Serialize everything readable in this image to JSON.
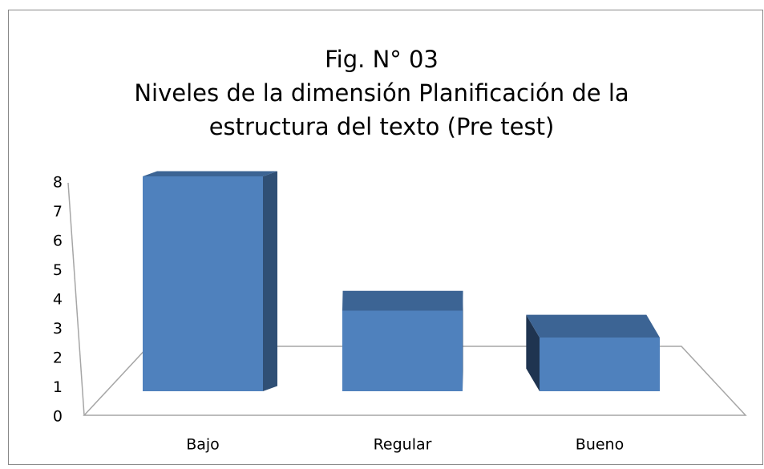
{
  "chart_data": {
    "type": "bar3d",
    "title": [
      "Fig. N° 03",
      "Niveles de la dimensión Planificación de la",
      "estructura del texto (Pre test)"
    ],
    "categories": [
      "Bajo",
      "Regular",
      "Bueno"
    ],
    "values": [
      8,
      3,
      2
    ],
    "color": "#4f81bd",
    "ylim": [
      0,
      8
    ],
    "yticks": [
      0,
      1,
      2,
      3,
      4,
      5,
      6,
      7,
      8
    ],
    "grid": false
  }
}
